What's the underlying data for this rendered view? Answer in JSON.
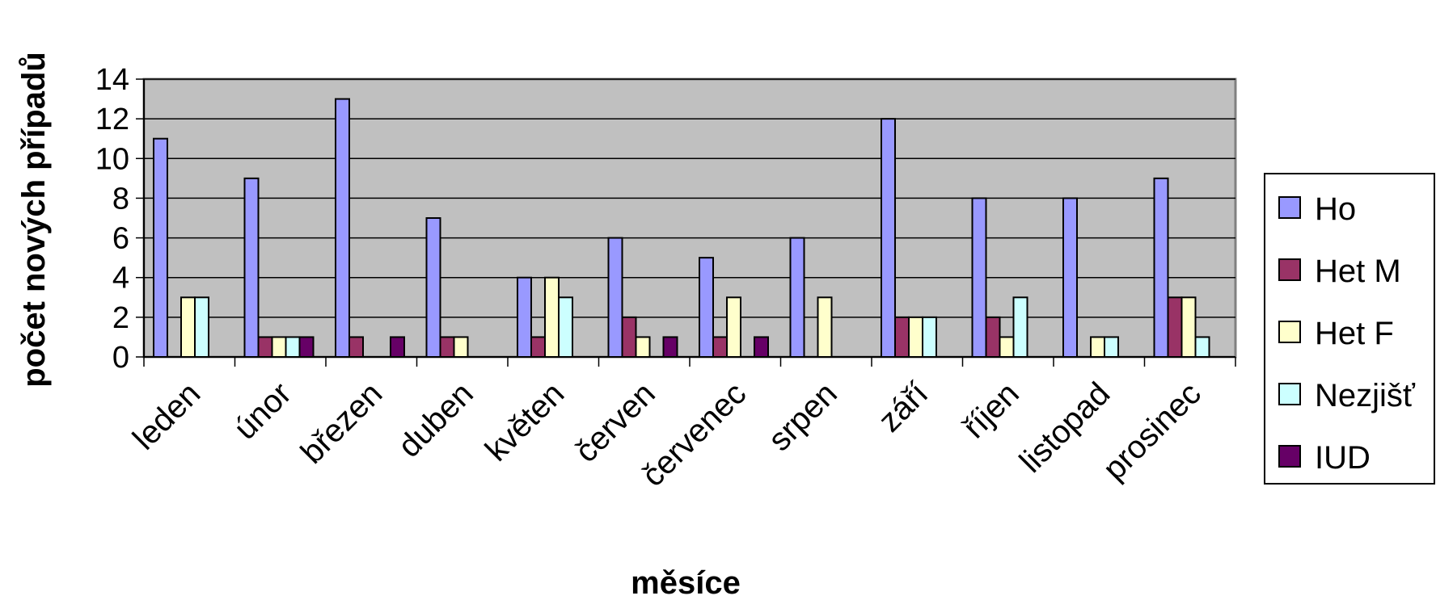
{
  "chart_data": {
    "type": "bar",
    "title": "",
    "xlabel": "měsíce",
    "ylabel": "počet nových případů",
    "ylim": [
      0,
      14
    ],
    "yticks": [
      0,
      2,
      4,
      6,
      8,
      10,
      12,
      14
    ],
    "grid": true,
    "legend_position": "right",
    "categories": [
      "leden",
      "únor",
      "březen",
      "duben",
      "květen",
      "červen",
      "červenec",
      "srpen",
      "září",
      "říjen",
      "listopad",
      "prosinec"
    ],
    "series": [
      {
        "name": "Ho",
        "color": "#9999ff",
        "values": [
          11,
          9,
          13,
          7,
          4,
          6,
          5,
          6,
          12,
          8,
          8,
          9
        ]
      },
      {
        "name": "Het M",
        "color": "#993366",
        "values": [
          0,
          1,
          1,
          1,
          1,
          2,
          1,
          0,
          2,
          2,
          0,
          3
        ]
      },
      {
        "name": "Het F",
        "color": "#ffffcc",
        "values": [
          3,
          1,
          0,
          1,
          4,
          1,
          3,
          3,
          2,
          1,
          1,
          3
        ]
      },
      {
        "name": "Nezjišť",
        "color": "#ccffff",
        "values": [
          3,
          1,
          0,
          0,
          3,
          0,
          0,
          0,
          2,
          3,
          1,
          1
        ]
      },
      {
        "name": "IUD",
        "color": "#660066",
        "values": [
          0,
          1,
          1,
          0,
          0,
          1,
          1,
          0,
          0,
          0,
          0,
          0
        ]
      }
    ],
    "plot_background": "#c0c0c0"
  }
}
